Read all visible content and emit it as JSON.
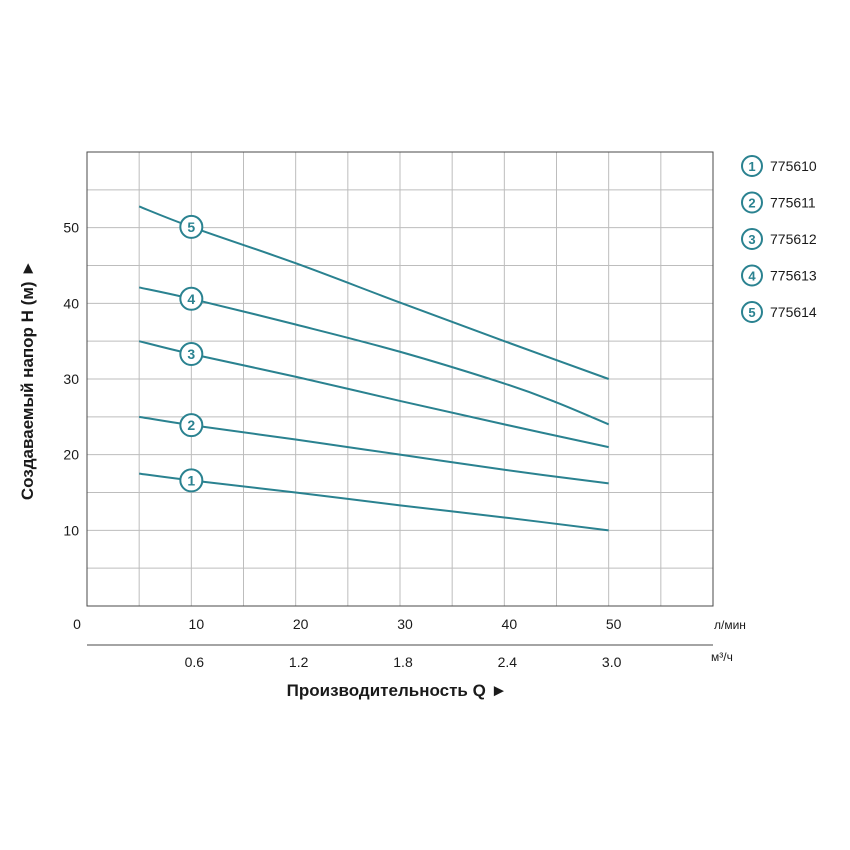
{
  "chart_data": {
    "type": "line",
    "ylabel": "Создаваемый напор Н (м) ►",
    "xlabel": "Производительность Q ►",
    "x_unit_primary": "л/мин",
    "x_unit_secondary": "м³/ч",
    "xlim": [
      0,
      60
    ],
    "ylim": [
      0,
      60
    ],
    "grid": true,
    "legend_position": "right",
    "x_ticks_primary": [
      {
        "value": 0,
        "label": "0"
      },
      {
        "value": 10,
        "label": "10"
      },
      {
        "value": 20,
        "label": "20"
      },
      {
        "value": 30,
        "label": "30"
      },
      {
        "value": 40,
        "label": "40"
      },
      {
        "value": 50,
        "label": "50"
      }
    ],
    "x_ticks_secondary": [
      {
        "value": 10,
        "label": "0.6"
      },
      {
        "value": 20,
        "label": "1.2"
      },
      {
        "value": 30,
        "label": "1.8"
      },
      {
        "value": 40,
        "label": "2.4"
      },
      {
        "value": 50,
        "label": "3.0"
      }
    ],
    "y_ticks": [
      {
        "value": 10,
        "label": "10"
      },
      {
        "value": 20,
        "label": "20"
      },
      {
        "value": 30,
        "label": "30"
      },
      {
        "value": 40,
        "label": "40"
      },
      {
        "value": 50,
        "label": "50"
      }
    ],
    "line_color": "#2a8290",
    "series": [
      {
        "marker": "1",
        "name": "775610",
        "x": [
          5,
          10,
          20,
          30,
          40,
          50
        ],
        "y": [
          17.5,
          16.6,
          15.0,
          13.3,
          11.7,
          10.0
        ]
      },
      {
        "marker": "2",
        "name": "775611",
        "x": [
          5,
          10,
          20,
          30,
          40,
          50
        ],
        "y": [
          25.0,
          23.9,
          22.0,
          20.0,
          18.0,
          16.2
        ]
      },
      {
        "marker": "3",
        "name": "775612",
        "x": [
          5,
          10,
          20,
          30,
          40,
          50
        ],
        "y": [
          35.0,
          33.3,
          30.3,
          27.1,
          24.0,
          21.0
        ]
      },
      {
        "marker": "4",
        "name": "775613",
        "x": [
          5,
          10,
          20,
          30,
          40,
          45,
          50
        ],
        "y": [
          42.1,
          40.6,
          37.2,
          33.6,
          29.4,
          26.9,
          24.0
        ]
      },
      {
        "marker": "5",
        "name": "775614",
        "x": [
          5,
          10,
          20,
          30,
          40,
          50
        ],
        "y": [
          52.8,
          50.1,
          45.3,
          40.1,
          35.0,
          30.0
        ]
      }
    ],
    "marker_x": 10
  }
}
